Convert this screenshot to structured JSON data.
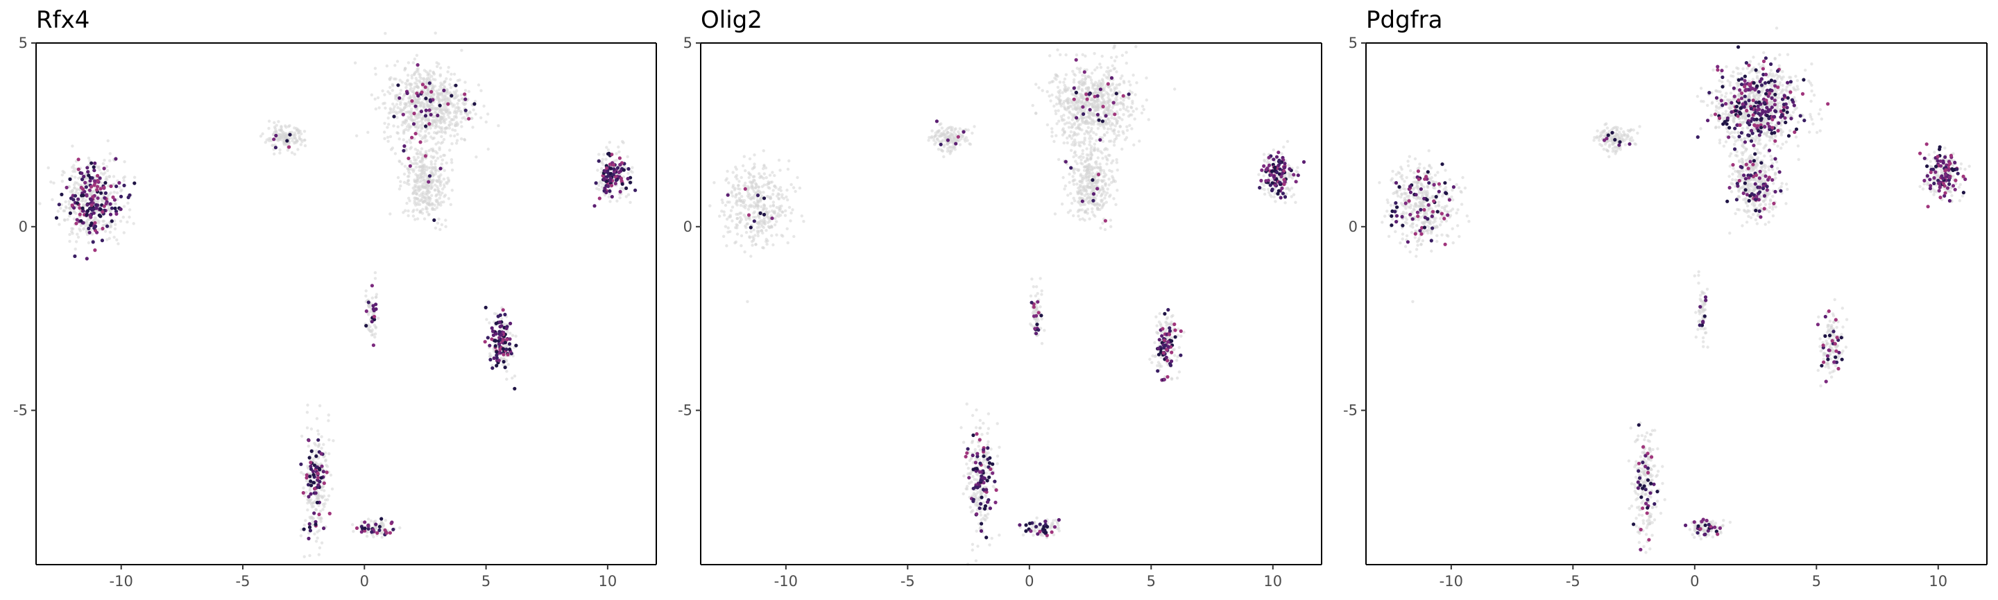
{
  "chart_data": [
    {
      "type": "scatter",
      "title": "Rfx4",
      "xlabel": "",
      "ylabel": "",
      "xlim": [
        -13.5,
        12
      ],
      "ylim": [
        -9.2,
        5
      ],
      "x_ticks": [
        -10,
        -5,
        0,
        5,
        10
      ],
      "x_tick_labels": [
        "-10",
        "-5",
        "0",
        "5",
        "10"
      ],
      "y_ticks": [
        5,
        0,
        -5
      ],
      "y_tick_labels": [
        "5",
        "0",
        "-5"
      ],
      "grid": false,
      "background_color": "#d3d3d3",
      "colors": [
        "#1f1445",
        "#3a1e63",
        "#5c1f72",
        "#7b2a7e",
        "#a0357c"
      ],
      "clusters": [
        {
          "name": "left cluster",
          "cx": -11.2,
          "cy": 0.7,
          "rx": 1.2,
          "ry": 1.0,
          "bg": 380,
          "expr": 160
        },
        {
          "name": "small upper-left cluster",
          "cx": -3.3,
          "cy": 2.4,
          "rx": 0.75,
          "ry": 0.3,
          "bg": 140,
          "expr": 6
        },
        {
          "name": "top center cluster",
          "cx": 2.6,
          "cy": 3.3,
          "rx": 1.6,
          "ry": 1.0,
          "bg": 700,
          "expr": 45
        },
        {
          "name": "top center lower lobe",
          "cx": 2.5,
          "cy": 1.2,
          "rx": 0.85,
          "ry": 0.9,
          "bg": 350,
          "expr": 8
        },
        {
          "name": "right cluster",
          "cx": 10.2,
          "cy": 1.4,
          "rx": 0.65,
          "ry": 0.6,
          "bg": 130,
          "expr": 90
        },
        {
          "name": "mid thin cluster",
          "cx": 0.3,
          "cy": -2.3,
          "rx": 0.2,
          "ry": 0.7,
          "bg": 60,
          "expr": 14
        },
        {
          "name": "mid right cluster",
          "cx": 5.6,
          "cy": -3.2,
          "rx": 0.45,
          "ry": 0.8,
          "bg": 110,
          "expr": 90
        },
        {
          "name": "lower diagonal cluster",
          "cx": -2.0,
          "cy": -7.0,
          "rx": 0.5,
          "ry": 1.4,
          "bg": 200,
          "expr": 70
        },
        {
          "name": "lower tail cluster",
          "cx": 0.5,
          "cy": -8.2,
          "rx": 0.7,
          "ry": 0.2,
          "bg": 70,
          "expr": 28
        }
      ]
    },
    {
      "type": "scatter",
      "title": "Olig2",
      "xlabel": "",
      "ylabel": "",
      "xlim": [
        -13.5,
        12
      ],
      "ylim": [
        -9.2,
        5
      ],
      "x_ticks": [
        -10,
        -5,
        0,
        5,
        10
      ],
      "x_tick_labels": [
        "-10",
        "-5",
        "0",
        "5",
        "10"
      ],
      "y_ticks": [
        5,
        0,
        -5
      ],
      "y_tick_labels": [
        "5",
        "0",
        "-5"
      ],
      "grid": false,
      "background_color": "#d3d3d3",
      "colors": [
        "#1f1445",
        "#3a1e63",
        "#5c1f72",
        "#7b2a7e",
        "#a0357c"
      ],
      "clusters": [
        {
          "name": "left cluster",
          "cx": -11.2,
          "cy": 0.6,
          "rx": 1.2,
          "ry": 1.0,
          "bg": 380,
          "expr": 10
        },
        {
          "name": "small upper-left cluster",
          "cx": -3.3,
          "cy": 2.4,
          "rx": 0.75,
          "ry": 0.3,
          "bg": 140,
          "expr": 6
        },
        {
          "name": "top center cluster",
          "cx": 2.6,
          "cy": 3.3,
          "rx": 1.6,
          "ry": 1.0,
          "bg": 700,
          "expr": 30
        },
        {
          "name": "top center lower lobe",
          "cx": 2.5,
          "cy": 1.2,
          "rx": 0.85,
          "ry": 0.9,
          "bg": 350,
          "expr": 8
        },
        {
          "name": "right cluster",
          "cx": 10.2,
          "cy": 1.4,
          "rx": 0.65,
          "ry": 0.6,
          "bg": 130,
          "expr": 90
        },
        {
          "name": "mid thin cluster",
          "cx": 0.3,
          "cy": -2.3,
          "rx": 0.2,
          "ry": 0.7,
          "bg": 60,
          "expr": 14
        },
        {
          "name": "mid right cluster",
          "cx": 5.6,
          "cy": -3.2,
          "rx": 0.45,
          "ry": 0.8,
          "bg": 110,
          "expr": 60
        },
        {
          "name": "lower diagonal cluster",
          "cx": -2.0,
          "cy": -7.0,
          "rx": 0.5,
          "ry": 1.4,
          "bg": 200,
          "expr": 75
        },
        {
          "name": "lower tail cluster",
          "cx": 0.5,
          "cy": -8.2,
          "rx": 0.7,
          "ry": 0.2,
          "bg": 70,
          "expr": 25
        }
      ]
    },
    {
      "type": "scatter",
      "title": "Pdgfra",
      "xlabel": "",
      "ylabel": "",
      "xlim": [
        -13.5,
        12
      ],
      "ylim": [
        -9.2,
        5
      ],
      "x_ticks": [
        -10,
        -5,
        0,
        5,
        10
      ],
      "x_tick_labels": [
        "-10",
        "-5",
        "0",
        "5",
        "10"
      ],
      "y_ticks": [
        5,
        0,
        -5
      ],
      "y_tick_labels": [
        "5",
        "0",
        "-5"
      ],
      "grid": false,
      "background_color": "#d3d3d3",
      "colors": [
        "#1f1445",
        "#3a1e63",
        "#5c1f72",
        "#7b2a7e",
        "#a0357c"
      ],
      "clusters": [
        {
          "name": "left cluster",
          "cx": -11.2,
          "cy": 0.6,
          "rx": 1.2,
          "ry": 1.0,
          "bg": 380,
          "expr": 70
        },
        {
          "name": "small upper-left cluster",
          "cx": -3.3,
          "cy": 2.4,
          "rx": 0.75,
          "ry": 0.3,
          "bg": 140,
          "expr": 8
        },
        {
          "name": "top center cluster",
          "cx": 2.6,
          "cy": 3.3,
          "rx": 1.6,
          "ry": 1.0,
          "bg": 700,
          "expr": 230
        },
        {
          "name": "top center lower lobe",
          "cx": 2.5,
          "cy": 1.2,
          "rx": 0.85,
          "ry": 0.9,
          "bg": 350,
          "expr": 70
        },
        {
          "name": "right cluster",
          "cx": 10.2,
          "cy": 1.4,
          "rx": 0.65,
          "ry": 0.6,
          "bg": 130,
          "expr": 90
        },
        {
          "name": "mid thin cluster",
          "cx": 0.3,
          "cy": -2.3,
          "rx": 0.2,
          "ry": 0.7,
          "bg": 60,
          "expr": 8
        },
        {
          "name": "mid right cluster",
          "cx": 5.6,
          "cy": -3.2,
          "rx": 0.45,
          "ry": 0.8,
          "bg": 110,
          "expr": 30
        },
        {
          "name": "lower diagonal cluster",
          "cx": -2.0,
          "cy": -7.0,
          "rx": 0.5,
          "ry": 1.4,
          "bg": 200,
          "expr": 35
        },
        {
          "name": "lower tail cluster",
          "cx": 0.5,
          "cy": -8.2,
          "rx": 0.7,
          "ry": 0.2,
          "bg": 70,
          "expr": 22
        }
      ]
    }
  ]
}
